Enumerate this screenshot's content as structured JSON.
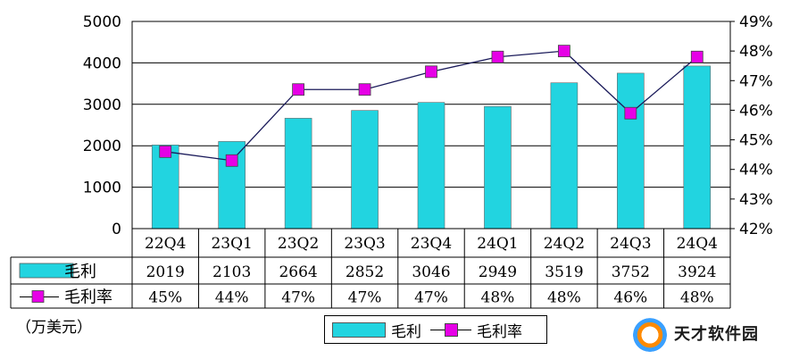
{
  "chart_data": {
    "type": "bar",
    "categories": [
      "22Q4",
      "23Q1",
      "23Q2",
      "23Q3",
      "23Q4",
      "24Q1",
      "24Q2",
      "24Q3",
      "24Q4"
    ],
    "series": [
      {
        "name": "毛利",
        "type": "bar",
        "axis": "left",
        "color": "#22d4e0",
        "values": [
          2019,
          2103,
          2664,
          2852,
          3046,
          2949,
          3519,
          3752,
          3924
        ]
      },
      {
        "name": "毛利率",
        "type": "line",
        "axis": "right",
        "color": "#e600e6",
        "values": [
          44.6,
          44.3,
          46.7,
          46.7,
          47.3,
          47.8,
          48.0,
          45.9,
          47.8
        ]
      }
    ],
    "table_rows": [
      {
        "label": "毛利",
        "cells": [
          "2019",
          "2103",
          "2664",
          "2852",
          "3046",
          "2949",
          "3519",
          "3752",
          "3924"
        ]
      },
      {
        "label": "毛利率",
        "cells": [
          "45%",
          "44%",
          "47%",
          "47%",
          "47%",
          "48%",
          "48%",
          "46%",
          "48%"
        ]
      }
    ],
    "y_left": {
      "min": 0,
      "max": 5000,
      "ticks": [
        "0",
        "1000",
        "2000",
        "3000",
        "4000",
        "5000"
      ]
    },
    "y_right": {
      "min": 42,
      "max": 49,
      "ticks": [
        "42%",
        "43%",
        "44%",
        "45%",
        "46%",
        "47%",
        "48%",
        "49%"
      ]
    },
    "grid": true,
    "legend_position": "bottom-center",
    "unit": "（万美元）"
  },
  "legend": {
    "bar_label": "毛利",
    "line_label": "毛利率"
  },
  "watermark": {
    "text": "天才软件园"
  }
}
